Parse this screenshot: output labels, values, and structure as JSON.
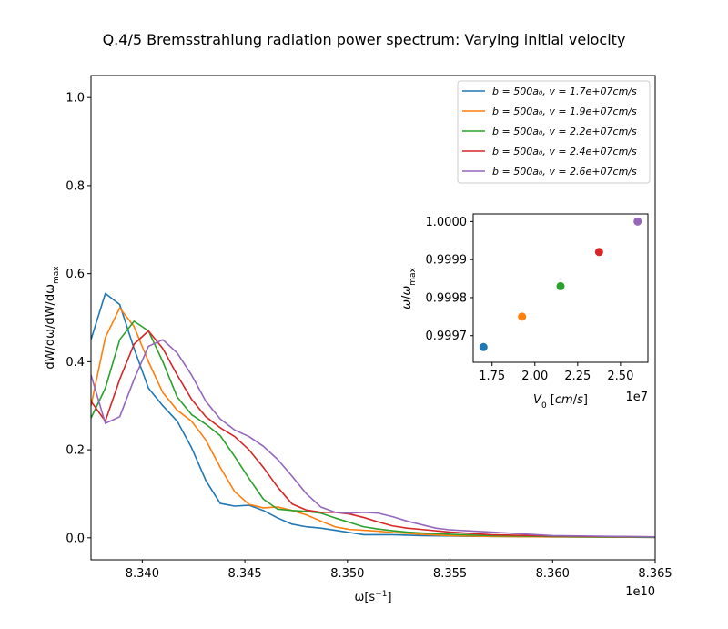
{
  "chart_data": [
    {
      "type": "line",
      "title": "Q.4/5 Bremsstrahlung radiation power spectrum: Varying initial velocity",
      "xlabel": "ω[s⁻¹]",
      "ylabel": "dW/dω/dW/dω_max",
      "x_offset_label": "1e10",
      "xlim": [
        8.3375,
        8.365
      ],
      "ylim": [
        -0.05,
        1.05
      ],
      "x_ticks": [
        8.34,
        8.345,
        8.35,
        8.355,
        8.36,
        8.365
      ],
      "x_tick_labels": [
        "8.340",
        "8.345",
        "8.350",
        "8.355",
        "8.360",
        "8.365"
      ],
      "y_ticks": [
        0.0,
        0.2,
        0.4,
        0.6,
        0.8,
        1.0
      ],
      "y_tick_labels": [
        "0.0",
        "0.2",
        "0.4",
        "0.6",
        "0.8",
        "1.0"
      ],
      "grid": false,
      "legend_position": "top-right",
      "series": [
        {
          "name": "b = 500a₀, v = 1.7e+07cm/s",
          "color": "#1f77b4",
          "x": [
            8.3375,
            8.3382,
            8.3389,
            8.3396,
            8.3403,
            8.341,
            8.3417,
            8.3424,
            8.3431,
            8.3438,
            8.3445,
            8.3452,
            8.3459,
            8.3466,
            8.3473,
            8.348,
            8.3487,
            8.3494,
            8.3501,
            8.3508,
            8.3515,
            8.3522,
            8.3529,
            8.3536,
            8.355,
            8.357,
            8.36,
            8.365
          ],
          "y": [
            0.45,
            0.555,
            0.53,
            0.43,
            0.34,
            0.3,
            0.265,
            0.205,
            0.13,
            0.078,
            0.072,
            0.074,
            0.062,
            0.045,
            0.031,
            0.025,
            0.022,
            0.017,
            0.012,
            0.007,
            0.007,
            0.007,
            0.006,
            0.005,
            0.004,
            0.003,
            0.002,
            0.001
          ]
        },
        {
          "name": "b = 500a₀, v = 1.9e+07cm/s",
          "color": "#ff7f0e",
          "x": [
            8.3375,
            8.3382,
            8.3389,
            8.3396,
            8.3403,
            8.341,
            8.3417,
            8.3424,
            8.3431,
            8.3438,
            8.3445,
            8.3452,
            8.3459,
            8.3466,
            8.3473,
            8.348,
            8.3487,
            8.3494,
            8.3501,
            8.3508,
            8.3515,
            8.3522,
            8.3529,
            8.3536,
            8.355,
            8.357,
            8.36,
            8.365
          ],
          "y": [
            0.3,
            0.455,
            0.522,
            0.48,
            0.4,
            0.33,
            0.29,
            0.265,
            0.222,
            0.16,
            0.105,
            0.076,
            0.068,
            0.07,
            0.062,
            0.052,
            0.038,
            0.025,
            0.019,
            0.017,
            0.015,
            0.012,
            0.01,
            0.008,
            0.005,
            0.003,
            0.002,
            0.001
          ]
        },
        {
          "name": "b = 500a₀, v = 2.2e+07cm/s",
          "color": "#2ca02c",
          "x": [
            8.3375,
            8.3382,
            8.3389,
            8.3396,
            8.3403,
            8.341,
            8.3417,
            8.3424,
            8.3431,
            8.3438,
            8.3445,
            8.3452,
            8.3459,
            8.3466,
            8.3473,
            8.348,
            8.3487,
            8.3494,
            8.3501,
            8.3508,
            8.3515,
            8.3522,
            8.3529,
            8.3536,
            8.355,
            8.357,
            8.36,
            8.365
          ],
          "y": [
            0.272,
            0.34,
            0.45,
            0.492,
            0.47,
            0.4,
            0.32,
            0.28,
            0.258,
            0.232,
            0.185,
            0.135,
            0.088,
            0.065,
            0.062,
            0.06,
            0.056,
            0.045,
            0.035,
            0.025,
            0.02,
            0.016,
            0.013,
            0.011,
            0.008,
            0.005,
            0.003,
            0.001
          ]
        },
        {
          "name": "b = 500a₀, v = 2.4e+07cm/s",
          "color": "#d62728",
          "x": [
            8.3375,
            8.3382,
            8.3389,
            8.3396,
            8.3403,
            8.341,
            8.3417,
            8.3424,
            8.3431,
            8.3438,
            8.3445,
            8.3452,
            8.3459,
            8.3466,
            8.3473,
            8.348,
            8.3487,
            8.3494,
            8.3501,
            8.3508,
            8.3515,
            8.3522,
            8.3529,
            8.3536,
            8.355,
            8.357,
            8.36,
            8.365
          ],
          "y": [
            0.31,
            0.265,
            0.36,
            0.44,
            0.47,
            0.43,
            0.37,
            0.315,
            0.275,
            0.25,
            0.23,
            0.2,
            0.16,
            0.115,
            0.077,
            0.063,
            0.058,
            0.058,
            0.054,
            0.046,
            0.036,
            0.027,
            0.022,
            0.019,
            0.013,
            0.007,
            0.004,
            0.002
          ]
        },
        {
          "name": "b = 500a₀, v = 2.6e+07cm/s",
          "color": "#9467bd",
          "x": [
            8.3375,
            8.3382,
            8.3389,
            8.3396,
            8.3403,
            8.341,
            8.3417,
            8.3424,
            8.3431,
            8.3438,
            8.3445,
            8.3452,
            8.3459,
            8.3466,
            8.3473,
            8.348,
            8.3487,
            8.3494,
            8.3501,
            8.3508,
            8.3515,
            8.3522,
            8.3529,
            8.3536,
            8.3543,
            8.355,
            8.357,
            8.36,
            8.365
          ],
          "y": [
            0.37,
            0.26,
            0.275,
            0.36,
            0.435,
            0.45,
            0.42,
            0.37,
            0.31,
            0.27,
            0.245,
            0.23,
            0.208,
            0.178,
            0.14,
            0.1,
            0.07,
            0.058,
            0.056,
            0.058,
            0.056,
            0.048,
            0.038,
            0.03,
            0.022,
            0.018,
            0.013,
            0.005,
            0.002
          ]
        }
      ]
    },
    {
      "type": "scatter",
      "title": "",
      "xlabel": "V₀ [cm/s]",
      "ylabel": "ω/ω_max",
      "x_offset_label": "1e7",
      "xlim": [
        1.64,
        2.66
      ],
      "ylim": [
        0.99963,
        1.00002
      ],
      "x_ticks": [
        1.75,
        2.0,
        2.25,
        2.5
      ],
      "x_tick_labels": [
        "1.75",
        "2.00",
        "2.25",
        "2.50"
      ],
      "y_ticks": [
        0.9997,
        0.9998,
        0.9999,
        1.0
      ],
      "y_tick_labels": [
        "0.9997",
        "0.9998",
        "0.9999",
        "1.0000"
      ],
      "points": [
        {
          "x": 1.7,
          "y": 0.99967,
          "color": "#1f77b4"
        },
        {
          "x": 1.925,
          "y": 0.99975,
          "color": "#ff7f0e"
        },
        {
          "x": 2.15,
          "y": 0.99983,
          "color": "#2ca02c"
        },
        {
          "x": 2.375,
          "y": 0.99992,
          "color": "#d62728"
        },
        {
          "x": 2.6,
          "y": 1.0,
          "color": "#9467bd"
        }
      ]
    }
  ]
}
